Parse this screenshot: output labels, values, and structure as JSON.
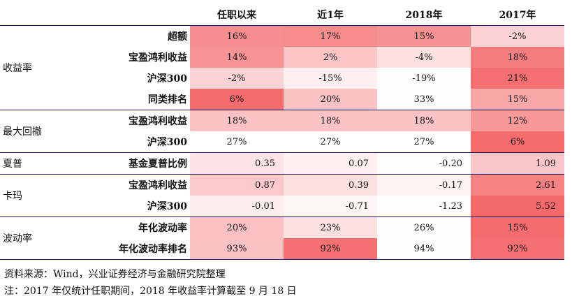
{
  "header": [
    "",
    "",
    "任职以来",
    "近1年",
    "2018年",
    "2017年"
  ],
  "groups": [
    {
      "label": "收益率",
      "rows": [
        {
          "metric": "超额",
          "cells": [
            {
              "v": "16%",
              "bg": "#f68e8f"
            },
            {
              "v": "17%",
              "bg": "#f68b8c"
            },
            {
              "v": "15%",
              "bg": "#f79293"
            },
            {
              "v": "-2%",
              "bg": "#fcd3d4"
            }
          ]
        },
        {
          "metric": "宝盈鸿利收益",
          "cells": [
            {
              "v": "14%",
              "bg": "#f79394"
            },
            {
              "v": "2%",
              "bg": "#fbc5c6"
            },
            {
              "v": "-4%",
              "bg": "#fde0e0"
            },
            {
              "v": "18%",
              "bg": "#f57d7f"
            }
          ]
        },
        {
          "metric": "沪深300",
          "cells": [
            {
              "v": "-2%",
              "bg": "#fcd3d4"
            },
            {
              "v": "-15%",
              "bg": "#fef0f0"
            },
            {
              "v": "-19%",
              "bg": "#fdfdfd"
            },
            {
              "v": "21%",
              "bg": "#f46f71"
            }
          ]
        },
        {
          "metric": "同类排名",
          "cells": [
            {
              "v": "6%",
              "bg": "#f46c6e"
            },
            {
              "v": "20%",
              "bg": "#fbc2c3"
            },
            {
              "v": "33%",
              "bg": "#fefefe"
            },
            {
              "v": "15%",
              "bg": "#f9a6a7"
            }
          ]
        }
      ]
    },
    {
      "label": "最大回撤",
      "rows": [
        {
          "metric": "宝盈鸿利收益",
          "cells": [
            {
              "v": "18%",
              "bg": "#fbc3c4"
            },
            {
              "v": "18%",
              "bg": "#fbc3c4"
            },
            {
              "v": "18%",
              "bg": "#fbc3c4"
            },
            {
              "v": "12%",
              "bg": "#f79899"
            }
          ]
        },
        {
          "metric": "沪深300",
          "cells": [
            {
              "v": "27%",
              "bg": "#ffffff"
            },
            {
              "v": "27%",
              "bg": "#ffffff"
            },
            {
              "v": "27%",
              "bg": "#ffffff"
            },
            {
              "v": "6%",
              "bg": "#f46c6e"
            }
          ]
        }
      ]
    },
    {
      "label": "夏普",
      "rows": [
        {
          "metric": "基金夏普比例",
          "num": true,
          "cells": [
            {
              "v": "0.35",
              "bg": "#fde3e4"
            },
            {
              "v": "0.07",
              "bg": "#fef0f0"
            },
            {
              "v": "-0.20",
              "bg": "#fdfdfd"
            },
            {
              "v": "1.09",
              "bg": "#fbc6c7"
            }
          ]
        }
      ]
    },
    {
      "label": "卡玛",
      "rows": [
        {
          "metric": "宝盈鸿利收益",
          "num": true,
          "cells": [
            {
              "v": "0.87",
              "bg": "#fbc9ca"
            },
            {
              "v": "0.39",
              "bg": "#fde0e0"
            },
            {
              "v": "-0.17",
              "bg": "#fef2f2"
            },
            {
              "v": "2.61",
              "bg": "#f68384"
            }
          ]
        },
        {
          "metric": "沪深300",
          "num": true,
          "cells": [
            {
              "v": "-0.01",
              "bg": "#fdeeee"
            },
            {
              "v": "-0.71",
              "bg": "#fef6f6"
            },
            {
              "v": "-1.23",
              "bg": "#fefefe"
            },
            {
              "v": "5.52",
              "bg": "#f46a6c"
            }
          ]
        }
      ]
    },
    {
      "label": "波动率",
      "rows": [
        {
          "metric": "年化波动率",
          "cells": [
            {
              "v": "20%",
              "bg": "#fbc0c1"
            },
            {
              "v": "23%",
              "bg": "#fde0e0"
            },
            {
              "v": "26%",
              "bg": "#fefefe"
            },
            {
              "v": "15%",
              "bg": "#f46c6e"
            }
          ]
        },
        {
          "metric": "年化波动率排名",
          "cells": [
            {
              "v": "93%",
              "bg": "#fbc2c3"
            },
            {
              "v": "92%",
              "bg": "#f47072"
            },
            {
              "v": "94%",
              "bg": "#fefefe"
            },
            {
              "v": "92%",
              "bg": "#f47072"
            }
          ]
        }
      ]
    }
  ],
  "footer": {
    "source": "资料来源：Wind，兴业证券经济与金融研究院整理",
    "note": "注：2017 年仅统计任职期间，2018 年收益率计算截至 9 月 18 日"
  },
  "colors": {
    "rule": "#1a1a5e",
    "accent": "#f46c6e"
  }
}
